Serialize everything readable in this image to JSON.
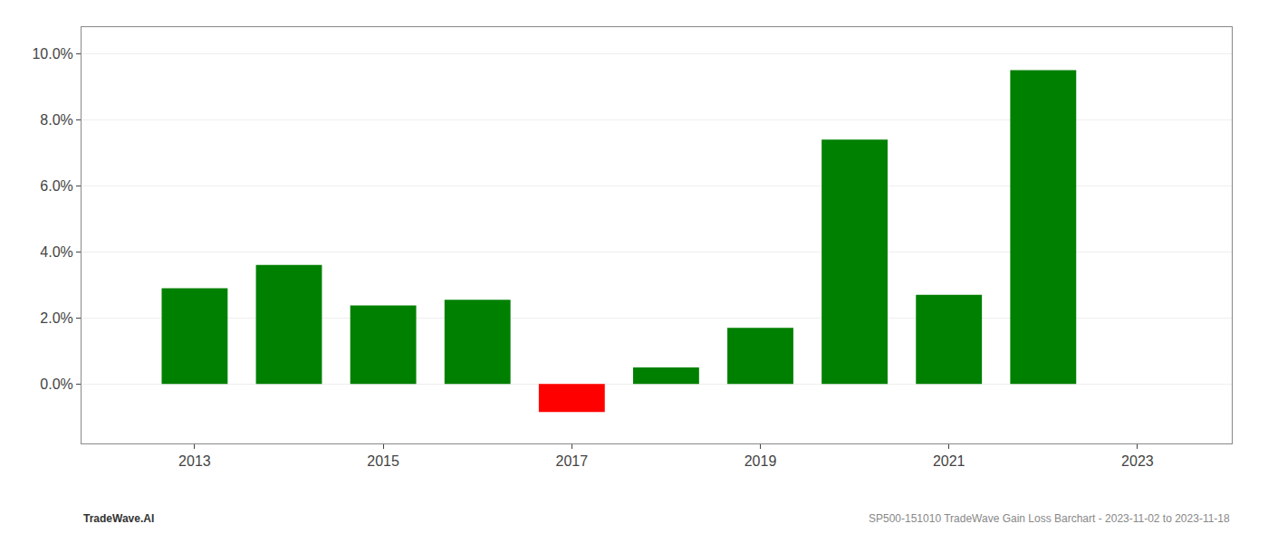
{
  "chart_data": {
    "type": "bar",
    "x": [
      2013,
      2014,
      2015,
      2016,
      2017,
      2018,
      2019,
      2020,
      2021,
      2022
    ],
    "values": [
      0.029,
      0.036,
      0.0238,
      0.0255,
      -0.0085,
      0.005,
      0.017,
      0.074,
      0.027,
      0.095
    ],
    "colors": [
      "#008000",
      "#008000",
      "#008000",
      "#008000",
      "#ff0000",
      "#008000",
      "#008000",
      "#008000",
      "#008000",
      "#008000"
    ],
    "xlim": [
      2011.8,
      2024.0
    ],
    "xticks": [
      2013,
      2015,
      2017,
      2019,
      2021,
      2023
    ],
    "ylim": [
      -0.018,
      0.108
    ],
    "yticks": [
      {
        "value": 0.0,
        "label": "0.0%"
      },
      {
        "value": 0.02,
        "label": "2.0%"
      },
      {
        "value": 0.04,
        "label": "4.0%"
      },
      {
        "value": 0.06,
        "label": "6.0%"
      },
      {
        "value": 0.08,
        "label": "8.0%"
      },
      {
        "value": 0.1,
        "label": "10.0%"
      }
    ],
    "grid": true,
    "annotations": [
      "TradeWave.AI",
      "SP500-151010 TradeWave Gain Loss Barchart - 2023-11-02 to 2023-11-18"
    ]
  }
}
